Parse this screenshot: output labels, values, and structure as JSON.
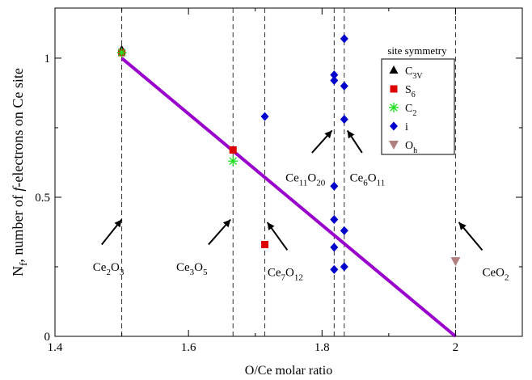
{
  "chart_data": {
    "type": "scatter",
    "title": "",
    "xlabel": "O/Ce molar ratio",
    "ylabel_main": "N",
    "ylabel_sub": "f",
    "ylabel_rest": ", number of ",
    "ylabel_italic": "f",
    "ylabel_end": "-electrons on Ce site",
    "xlim": [
      1.4,
      2.1
    ],
    "ylim": [
      0,
      1.18
    ],
    "xticks": [
      1.4,
      1.6,
      1.8,
      2.0
    ],
    "xtick_labels": [
      "1.4",
      "1.6",
      "1.8",
      "2"
    ],
    "yticks": [
      0,
      0.5,
      1.0
    ],
    "ytick_labels": [
      "0",
      "0.5",
      "1"
    ],
    "grid": false,
    "fit_line": {
      "x": [
        1.5,
        2.0
      ],
      "y": [
        1.0,
        0.0
      ],
      "color": "#9900cc"
    },
    "vertical_lines": [
      1.5,
      1.6667,
      1.7143,
      1.8182,
      1.8333,
      2.0
    ],
    "legend": {
      "title": "site symmetry",
      "position": "top-right",
      "entries": [
        {
          "marker": "triangle",
          "color": "#000000",
          "base": "C",
          "sub": "3V"
        },
        {
          "marker": "square",
          "color": "#dd0000",
          "base": "S",
          "sub": "6"
        },
        {
          "marker": "star",
          "color": "#22dd22",
          "base": "C",
          "sub": "2"
        },
        {
          "marker": "diamond",
          "color": "#0000cc",
          "base": "i",
          "sub": ""
        },
        {
          "marker": "tri-down",
          "color": "#b08080",
          "base": "O",
          "sub": "h"
        }
      ]
    },
    "series": [
      {
        "name": "C3V",
        "marker": "triangle",
        "color": "#000000",
        "points": [
          [
            1.5,
            1.03
          ]
        ]
      },
      {
        "name": "S6",
        "marker": "square",
        "color": "#dd0000",
        "points": [
          [
            1.5,
            1.02
          ],
          [
            1.6667,
            0.67
          ],
          [
            1.7143,
            0.33
          ]
        ]
      },
      {
        "name": "C2",
        "marker": "star",
        "color": "#22dd22",
        "points": [
          [
            1.5,
            1.02
          ],
          [
            1.6667,
            0.63
          ]
        ]
      },
      {
        "name": "i",
        "marker": "diamond",
        "color": "#0000cc",
        "points": [
          [
            1.7143,
            0.79
          ],
          [
            1.8182,
            0.94
          ],
          [
            1.8182,
            0.92
          ],
          [
            1.8182,
            0.54
          ],
          [
            1.8182,
            0.42
          ],
          [
            1.8182,
            0.32
          ],
          [
            1.8182,
            0.24
          ],
          [
            1.8333,
            1.07
          ],
          [
            1.8333,
            0.9
          ],
          [
            1.8333,
            0.78
          ],
          [
            1.8333,
            0.38
          ],
          [
            1.8333,
            0.25
          ]
        ]
      },
      {
        "name": "Oh",
        "marker": "tri-down",
        "color": "#b08080",
        "points": [
          [
            2.0,
            0.27
          ]
        ]
      }
    ],
    "annotations": [
      {
        "id": "ce2o3",
        "parts": [
          [
            "Ce",
            ""
          ],
          [
            "2",
            "sub"
          ],
          [
            "O",
            ""
          ],
          [
            "3",
            "sub"
          ]
        ],
        "label_xy": [
          1.48,
          0.3
        ],
        "arrow_from": [
          1.47,
          0.33
        ],
        "arrow_to": [
          1.5,
          0.42
        ]
      },
      {
        "id": "ce3o5",
        "parts": [
          [
            "Ce",
            ""
          ],
          [
            "3",
            "sub"
          ],
          [
            "O",
            ""
          ],
          [
            "5",
            "sub"
          ]
        ],
        "label_xy": [
          1.605,
          0.3
        ],
        "arrow_from": [
          1.63,
          0.33
        ],
        "arrow_to": [
          1.663,
          0.42
        ]
      },
      {
        "id": "ce7o12",
        "parts": [
          [
            "Ce",
            ""
          ],
          [
            "7",
            "sub"
          ],
          [
            "O",
            ""
          ],
          [
            "12",
            "sub"
          ]
        ],
        "label_xy": [
          1.745,
          0.28
        ],
        "arrow_from": [
          1.748,
          0.31
        ],
        "arrow_to": [
          1.718,
          0.41
        ]
      },
      {
        "id": "ce11o20",
        "parts": [
          [
            "Ce",
            ""
          ],
          [
            "11",
            "sub"
          ],
          [
            "O",
            ""
          ],
          [
            "20",
            "sub"
          ]
        ],
        "label_xy": [
          1.775,
          0.62
        ],
        "arrow_from": [
          1.785,
          0.66
        ],
        "arrow_to": [
          1.815,
          0.74
        ]
      },
      {
        "id": "ce6o11",
        "parts": [
          [
            "Ce",
            ""
          ],
          [
            "6",
            "sub"
          ],
          [
            "O",
            ""
          ],
          [
            "11",
            "sub"
          ]
        ],
        "label_xy": [
          1.868,
          0.62
        ],
        "arrow_from": [
          1.86,
          0.66
        ],
        "arrow_to": [
          1.838,
          0.74
        ]
      },
      {
        "id": "ceo2",
        "parts": [
          [
            "CeO",
            ""
          ],
          [
            "2",
            "sub"
          ]
        ],
        "label_xy": [
          2.06,
          0.28
        ],
        "arrow_from": [
          2.04,
          0.31
        ],
        "arrow_to": [
          2.005,
          0.41
        ]
      }
    ]
  }
}
